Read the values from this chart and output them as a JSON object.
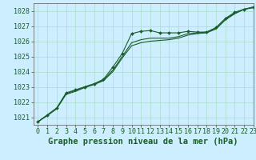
{
  "background_color": "#cceeff",
  "grid_color": "#aaddcc",
  "line_color": "#1a5c2a",
  "marker_color": "#1a5c2a",
  "title": "Graphe pression niveau de la mer (hPa)",
  "xlim": [
    -0.5,
    23
  ],
  "ylim": [
    1020.5,
    1028.5
  ],
  "yticks": [
    1021,
    1022,
    1023,
    1024,
    1025,
    1026,
    1027,
    1028
  ],
  "xticks": [
    0,
    1,
    2,
    3,
    4,
    5,
    6,
    7,
    8,
    9,
    10,
    11,
    12,
    13,
    14,
    15,
    16,
    17,
    18,
    19,
    20,
    21,
    22,
    23
  ],
  "series": [
    {
      "x": [
        0,
        1,
        2,
        3,
        4,
        5,
        6,
        7,
        8,
        9,
        10,
        11,
        12,
        13,
        14,
        15,
        16,
        17,
        18,
        19,
        20,
        21,
        22,
        23
      ],
      "y": [
        1020.7,
        1021.15,
        1021.6,
        1022.6,
        1022.8,
        1023.0,
        1023.2,
        1023.5,
        1024.3,
        1025.2,
        1026.5,
        1026.65,
        1026.7,
        1026.55,
        1026.55,
        1026.55,
        1026.65,
        1026.6,
        1026.6,
        1026.9,
        1027.5,
        1027.9,
        1028.1,
        1028.25
      ],
      "has_markers": true
    },
    {
      "x": [
        0,
        1,
        2,
        3,
        4,
        5,
        6,
        7,
        8,
        9,
        10,
        11,
        12,
        13,
        14,
        15,
        16,
        17,
        18,
        19,
        20,
        21,
        22,
        23
      ],
      "y": [
        1020.7,
        1021.15,
        1021.6,
        1022.55,
        1022.75,
        1023.0,
        1023.2,
        1023.45,
        1024.1,
        1025.0,
        1025.9,
        1026.1,
        1026.2,
        1026.2,
        1026.2,
        1026.3,
        1026.5,
        1026.55,
        1026.6,
        1026.85,
        1027.45,
        1027.85,
        1028.1,
        1028.25
      ],
      "has_markers": false
    },
    {
      "x": [
        0,
        1,
        2,
        3,
        4,
        5,
        6,
        7,
        8,
        9,
        10,
        11,
        12,
        13,
        14,
        15,
        16,
        17,
        18,
        19,
        20,
        21,
        22,
        23
      ],
      "y": [
        1020.7,
        1021.1,
        1021.55,
        1022.5,
        1022.7,
        1022.95,
        1023.15,
        1023.4,
        1024.0,
        1024.9,
        1025.7,
        1025.9,
        1026.0,
        1026.05,
        1026.1,
        1026.2,
        1026.4,
        1026.5,
        1026.55,
        1026.8,
        1027.4,
        1027.8,
        1028.1,
        1028.2
      ],
      "has_markers": false
    }
  ],
  "title_fontsize": 7.5,
  "tick_fontsize": 6,
  "title_color": "#1a5c2a",
  "tick_color": "#1a5c2a",
  "axis_color": "#555555"
}
